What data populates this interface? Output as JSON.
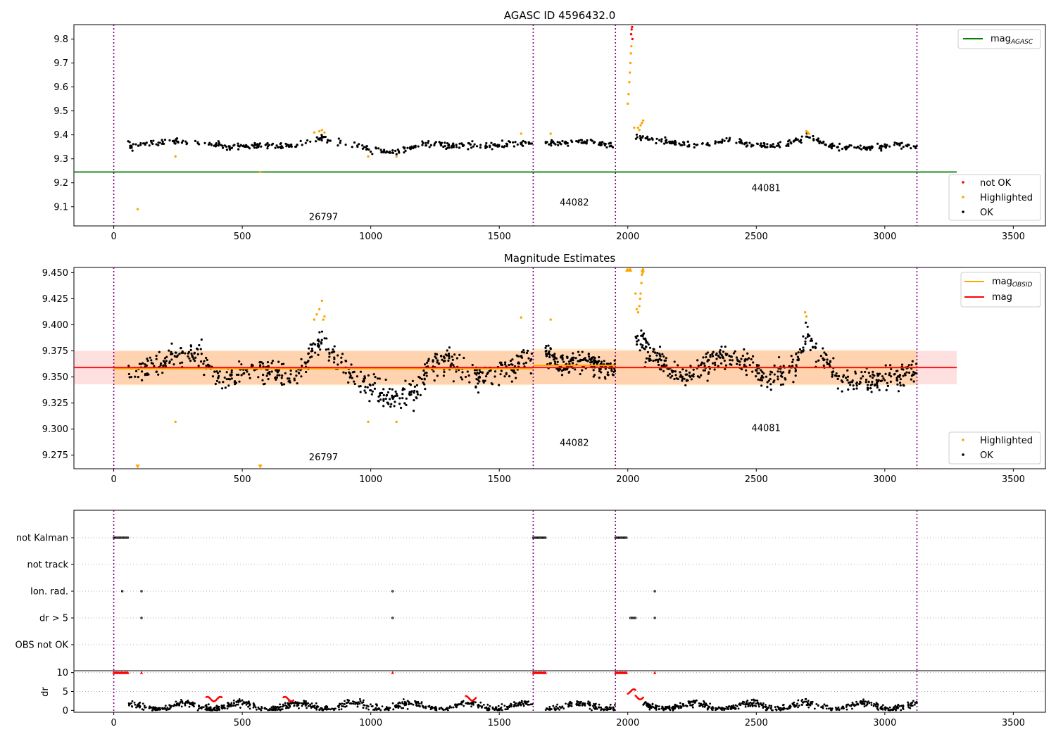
{
  "chart_data": [
    {
      "type": "scatter",
      "title": "AGASC ID 4596432.0",
      "xlim": [
        -155,
        3625
      ],
      "ylim": [
        9.02,
        9.86
      ],
      "xticks": [
        0,
        500,
        1000,
        1500,
        2000,
        2500,
        3000,
        3500
      ],
      "yticks": [
        9.1,
        9.2,
        9.3,
        9.4,
        9.5,
        9.6,
        9.7,
        9.8
      ],
      "obsid_boundaries": [
        0,
        1632,
        1952,
        3125
      ],
      "obsid_labels": [
        {
          "text": "26797",
          "x": 816,
          "y": 9.045
        },
        {
          "text": "44082",
          "x": 1792,
          "y": 9.105
        },
        {
          "text": "44081",
          "x": 2538,
          "y": 9.165
        }
      ],
      "reference_line": {
        "name": "mag_AGASC",
        "value": 9.245,
        "x": [
          -155,
          3280
        ],
        "color": "#008000"
      },
      "legend_lines": [
        {
          "label": "mag",
          "sub": "AGASC",
          "color": "#008000"
        }
      ],
      "legend_points": [
        {
          "label": "not OK",
          "color": "#ff0000"
        },
        {
          "label": "Highlighted",
          "color": "#ffa500"
        },
        {
          "label": "OK",
          "color": "#000000"
        }
      ],
      "ok_segments": [
        {
          "x": [
            55,
            1630
          ],
          "trend": [
            [
              55,
              9.355
            ],
            [
              200,
              9.37
            ],
            [
              350,
              9.37
            ],
            [
              450,
              9.345
            ],
            [
              600,
              9.36
            ],
            [
              700,
              9.35
            ],
            [
              810,
              9.39
            ],
            [
              900,
              9.365
            ],
            [
              1000,
              9.34
            ],
            [
              1100,
              9.33
            ],
            [
              1200,
              9.36
            ],
            [
              1400,
              9.355
            ],
            [
              1500,
              9.355
            ],
            [
              1600,
              9.37
            ],
            [
              1630,
              9.365
            ]
          ],
          "noise": 0.012,
          "n": 330
        },
        {
          "x": [
            1680,
            1950
          ],
          "trend": [
            [
              1680,
              9.365
            ],
            [
              1850,
              9.37
            ],
            [
              1950,
              9.355
            ]
          ],
          "noise": 0.01,
          "n": 70
        },
        {
          "x": [
            2030,
            3125
          ],
          "trend": [
            [
              2030,
              9.395
            ],
            [
              2060,
              9.385
            ],
            [
              2150,
              9.37
            ],
            [
              2250,
              9.355
            ],
            [
              2400,
              9.375
            ],
            [
              2500,
              9.355
            ],
            [
              2600,
              9.355
            ],
            [
              2700,
              9.395
            ],
            [
              2800,
              9.35
            ],
            [
              2950,
              9.345
            ],
            [
              3050,
              9.36
            ],
            [
              3125,
              9.35
            ]
          ],
          "noise": 0.011,
          "n": 260
        }
      ],
      "highlighted_points": [
        [
          93,
          9.09
        ],
        [
          240,
          9.31
        ],
        [
          570,
          9.245
        ],
        [
          800,
          9.415
        ],
        [
          810,
          9.42
        ],
        [
          820,
          9.41
        ],
        [
          780,
          9.41
        ],
        [
          990,
          9.31
        ],
        [
          1100,
          9.31
        ],
        [
          1585,
          9.405
        ],
        [
          1700,
          9.405
        ],
        [
          2000,
          9.53
        ],
        [
          2003,
          9.57
        ],
        [
          2006,
          9.62
        ],
        [
          2008,
          9.66
        ],
        [
          2010,
          9.7
        ],
        [
          2012,
          9.74
        ],
        [
          2014,
          9.77
        ],
        [
          2040,
          9.43
        ],
        [
          2045,
          9.42
        ],
        [
          2050,
          9.44
        ],
        [
          2055,
          9.45
        ],
        [
          2060,
          9.46
        ],
        [
          2025,
          9.43
        ],
        [
          2695,
          9.415
        ],
        [
          2700,
          9.41
        ],
        [
          2705,
          9.405
        ]
      ],
      "not_ok_points": [
        [
          2013,
          9.82
        ],
        [
          2015,
          9.84
        ],
        [
          2017,
          9.85
        ],
        [
          2018,
          9.8
        ]
      ]
    },
    {
      "type": "scatter",
      "title": "Magnitude Estimates",
      "xlim": [
        -155,
        3625
      ],
      "ylim": [
        9.262,
        9.455
      ],
      "xticks": [
        0,
        500,
        1000,
        1500,
        2000,
        2500,
        3000,
        3500
      ],
      "yticks": [
        9.275,
        9.3,
        9.325,
        9.35,
        9.375,
        9.4,
        9.425,
        9.45
      ],
      "obsid_boundaries": [
        0,
        1632,
        1952,
        3125
      ],
      "obsid_labels": [
        {
          "text": "26797",
          "x": 816,
          "y": 9.27
        },
        {
          "text": "44082",
          "x": 1792,
          "y": 9.284
        },
        {
          "text": "44081",
          "x": 2538,
          "y": 9.298
        }
      ],
      "mag": {
        "name": "mag",
        "value": 9.359,
        "band": [
          9.343,
          9.375
        ],
        "x": [
          -155,
          3280
        ],
        "color": "#ff0000"
      },
      "mag_obsid": [
        {
          "x": [
            0,
            1632
          ],
          "value": 9.358,
          "band": [
            9.342,
            9.375
          ]
        },
        {
          "x": [
            1632,
            1952
          ],
          "value": 9.361,
          "band": [
            9.343,
            9.377
          ]
        },
        {
          "x": [
            1952,
            3125
          ],
          "value": 9.359,
          "band": [
            9.342,
            9.376
          ]
        }
      ],
      "legend_lines": [
        {
          "label": "mag",
          "sub": "OBSID",
          "color": "#ffa500"
        },
        {
          "label": "mag",
          "sub": "",
          "color": "#ff0000"
        }
      ],
      "legend_points": [
        {
          "label": "Highlighted",
          "color": "#ffa500"
        },
        {
          "label": "OK",
          "color": "#000000"
        }
      ],
      "ok_segments": [
        {
          "x": [
            55,
            1630
          ],
          "trend": [
            [
              55,
              9.355
            ],
            [
              150,
              9.36
            ],
            [
              250,
              9.372
            ],
            [
              330,
              9.37
            ],
            [
              420,
              9.345
            ],
            [
              500,
              9.355
            ],
            [
              600,
              9.355
            ],
            [
              700,
              9.345
            ],
            [
              800,
              9.385
            ],
            [
              880,
              9.365
            ],
            [
              950,
              9.345
            ],
            [
              1030,
              9.335
            ],
            [
              1100,
              9.33
            ],
            [
              1170,
              9.335
            ],
            [
              1230,
              9.36
            ],
            [
              1300,
              9.365
            ],
            [
              1400,
              9.35
            ],
            [
              1500,
              9.355
            ],
            [
              1560,
              9.36
            ],
            [
              1600,
              9.37
            ],
            [
              1630,
              9.365
            ]
          ],
          "noise": 0.011,
          "n": 600
        },
        {
          "x": [
            1680,
            1950
          ],
          "trend": [
            [
              1680,
              9.375
            ],
            [
              1750,
              9.36
            ],
            [
              1850,
              9.365
            ],
            [
              1950,
              9.355
            ]
          ],
          "noise": 0.009,
          "n": 180
        },
        {
          "x": [
            2030,
            3125
          ],
          "trend": [
            [
              2030,
              9.39
            ],
            [
              2100,
              9.37
            ],
            [
              2200,
              9.35
            ],
            [
              2300,
              9.36
            ],
            [
              2380,
              9.37
            ],
            [
              2450,
              9.365
            ],
            [
              2550,
              9.35
            ],
            [
              2650,
              9.36
            ],
            [
              2700,
              9.39
            ],
            [
              2750,
              9.37
            ],
            [
              2850,
              9.345
            ],
            [
              3000,
              9.345
            ],
            [
              3100,
              9.355
            ],
            [
              3125,
              9.35
            ]
          ],
          "noise": 0.011,
          "n": 480
        }
      ],
      "highlighted_points": [
        [
          240,
          9.307
        ],
        [
          790,
          9.41
        ],
        [
          800,
          9.415
        ],
        [
          810,
          9.423
        ],
        [
          815,
          9.405
        ],
        [
          820,
          9.408
        ],
        [
          780,
          9.405
        ],
        [
          990,
          9.307
        ],
        [
          1100,
          9.307
        ],
        [
          1585,
          9.407
        ],
        [
          1700,
          9.405
        ],
        [
          2030,
          9.43
        ],
        [
          2035,
          9.415
        ],
        [
          2040,
          9.412
        ],
        [
          2045,
          9.418
        ],
        [
          2048,
          9.425
        ],
        [
          2050,
          9.43
        ],
        [
          2053,
          9.44
        ],
        [
          2055,
          9.448
        ],
        [
          2058,
          9.45
        ],
        [
          2060,
          9.453
        ],
        [
          2690,
          9.412
        ],
        [
          2695,
          9.408
        ]
      ],
      "clipped_points": [
        [
          93,
          9.264
        ],
        [
          570,
          9.264
        ],
        [
          1998,
          9.453
        ],
        [
          2005,
          9.453
        ],
        [
          2010,
          9.453
        ],
        [
          2058,
          9.453
        ]
      ]
    },
    {
      "type": "scatter",
      "title": "",
      "xlim": [
        -155,
        3625
      ],
      "flag_rows": [
        "not Kalman",
        "not track",
        "Ion. rad.",
        "dr > 5",
        "OBS not OK"
      ],
      "obsid_boundaries": [
        0,
        1632,
        1952,
        3125
      ],
      "flags": {
        "not Kalman": [
          [
            0,
            55
          ],
          [
            1632,
            1680
          ],
          [
            1952,
            1995
          ]
        ],
        "not track": [],
        "Ion. rad.": [
          [
            33,
            33
          ],
          [
            108,
            108
          ],
          [
            1085,
            1085
          ],
          [
            2105,
            2105
          ]
        ],
        "dr > 5": [
          [
            108,
            108
          ],
          [
            1085,
            1085
          ],
          [
            2010,
            2030
          ],
          [
            2105,
            2105
          ]
        ]
      }
    },
    {
      "type": "scatter",
      "title": "",
      "ylabel": "dr",
      "xlim": [
        -155,
        3625
      ],
      "ylim": [
        -0.5,
        10.5
      ],
      "yticks": [
        0,
        5,
        10
      ],
      "xticks": [
        0,
        500,
        1000,
        1500,
        2000,
        2500,
        3000,
        3500
      ],
      "obsid_boundaries": [
        0,
        1632,
        1952,
        3125
      ],
      "ok_range": [
        [
          55,
          1630
        ],
        [
          1680,
          1950
        ],
        [
          2060,
          3125
        ]
      ],
      "red_clusters": [
        [
          360,
          420,
          3.0
        ],
        [
          660,
          700,
          3.0
        ],
        [
          1370,
          1410,
          3.2
        ],
        [
          2000,
          2030,
          5.0
        ],
        [
          2030,
          2060,
          3.5
        ]
      ],
      "red_high": [
        [
          0,
          55
        ],
        [
          1632,
          1680
        ],
        [
          1952,
          1995
        ],
        [
          108,
          108
        ],
        [
          1085,
          1085
        ],
        [
          2105,
          2105
        ]
      ]
    }
  ]
}
